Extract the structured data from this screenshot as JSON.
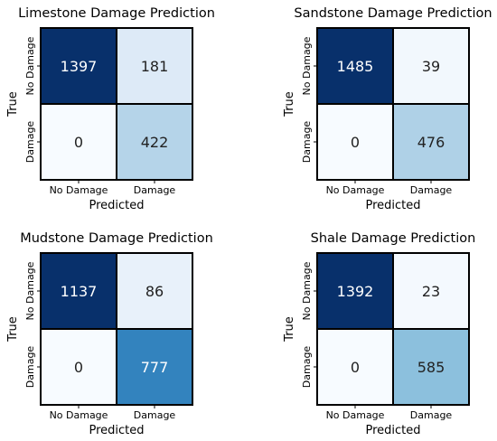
{
  "chart_data": [
    {
      "type": "heatmap",
      "title": "Limestone Damage Prediction",
      "xlabel": "Predicted",
      "ylabel": "True",
      "x_categories": [
        "No Damage",
        "Damage"
      ],
      "y_categories": [
        "No Damage",
        "Damage"
      ],
      "values": [
        [
          1397,
          181
        ],
        [
          0,
          422
        ]
      ],
      "colormap": "Blues"
    },
    {
      "type": "heatmap",
      "title": "Sandstone Damage Prediction",
      "xlabel": "Predicted",
      "ylabel": "True",
      "x_categories": [
        "No Damage",
        "Damage"
      ],
      "y_categories": [
        "No Damage",
        "Damage"
      ],
      "values": [
        [
          1485,
          39
        ],
        [
          0,
          476
        ]
      ],
      "colormap": "Blues"
    },
    {
      "type": "heatmap",
      "title": "Mudstone Damage Prediction",
      "xlabel": "Predicted",
      "ylabel": "True",
      "x_categories": [
        "No Damage",
        "Damage"
      ],
      "y_categories": [
        "No Damage",
        "Damage"
      ],
      "values": [
        [
          1137,
          86
        ],
        [
          0,
          777
        ]
      ],
      "colormap": "Blues"
    },
    {
      "type": "heatmap",
      "title": "Shale Damage Prediction",
      "xlabel": "Predicted",
      "ylabel": "True",
      "x_categories": [
        "No Damage",
        "Damage"
      ],
      "y_categories": [
        "No Damage",
        "Damage"
      ],
      "values": [
        [
          1392,
          23
        ],
        [
          0,
          585
        ]
      ],
      "colormap": "Blues"
    }
  ]
}
